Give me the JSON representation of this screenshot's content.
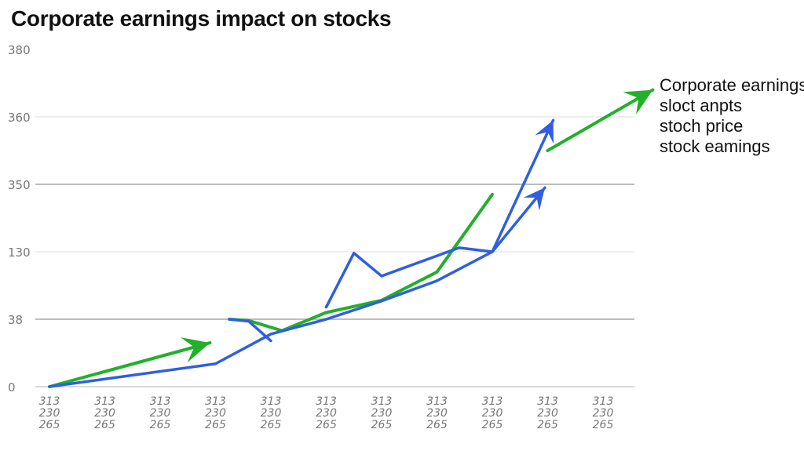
{
  "chart_data": {
    "type": "line",
    "title": "Corporate earnings impact on stocks",
    "y_tick_labels": [
      "0",
      "38",
      "130",
      "350",
      "360",
      "380"
    ],
    "x_tick_labels": [
      [
        "313",
        "230",
        "265"
      ],
      [
        "313",
        "230",
        "265"
      ],
      [
        "313",
        "230",
        "265"
      ],
      [
        "313",
        "230",
        "265"
      ],
      [
        "313",
        "230",
        "265"
      ],
      [
        "313",
        "230",
        "265"
      ],
      [
        "313",
        "230",
        "265"
      ],
      [
        "313",
        "230",
        "265"
      ],
      [
        "313",
        "230",
        "265"
      ],
      [
        "313",
        "230",
        "265"
      ],
      [
        "313",
        "230",
        "265"
      ]
    ],
    "x": [
      0,
      1,
      2,
      3,
      4,
      5,
      6,
      7,
      8,
      9,
      10
    ],
    "ylim": [
      0,
      5
    ],
    "grid": true,
    "legend_position": "top-right",
    "legend": [
      "Corporate earnings",
      "sloct anpts",
      "stoch price",
      "stock eamings"
    ],
    "series": [
      {
        "color": "#22b02a",
        "segments": [
          [
            [
              0,
              0.0
            ],
            [
              2.9,
              0.65
            ]
          ],
          [
            [
              3.25,
              1.0
            ],
            [
              3.6,
              0.98
            ],
            [
              4.2,
              0.83
            ],
            [
              5.0,
              1.1
            ],
            [
              6.0,
              1.28
            ],
            [
              7.0,
              1.7
            ],
            [
              8.0,
              2.85
            ]
          ],
          [
            [
              9.0,
              3.5
            ],
            [
              10.9,
              4.4
            ]
          ]
        ]
      },
      {
        "color": "#2f5fe0",
        "segments": [
          [
            [
              0,
              0.0
            ],
            [
              3.0,
              0.34
            ],
            [
              4.0,
              0.78
            ],
            [
              5.0,
              1.0
            ],
            [
              6.0,
              1.27
            ],
            [
              7.0,
              1.57
            ],
            [
              8.0,
              2.0
            ],
            [
              8.95,
              2.95
            ]
          ],
          [
            [
              3.25,
              1.0
            ],
            [
              3.6,
              0.97
            ],
            [
              4.0,
              0.68
            ]
          ],
          [
            [
              5.0,
              1.18
            ],
            [
              5.5,
              1.98
            ],
            [
              6.0,
              1.64
            ],
            [
              7.4,
              2.06
            ],
            [
              8.0,
              2.0
            ]
          ],
          [
            [
              8.0,
              2.0
            ],
            [
              9.1,
              3.95
            ]
          ]
        ]
      }
    ]
  }
}
